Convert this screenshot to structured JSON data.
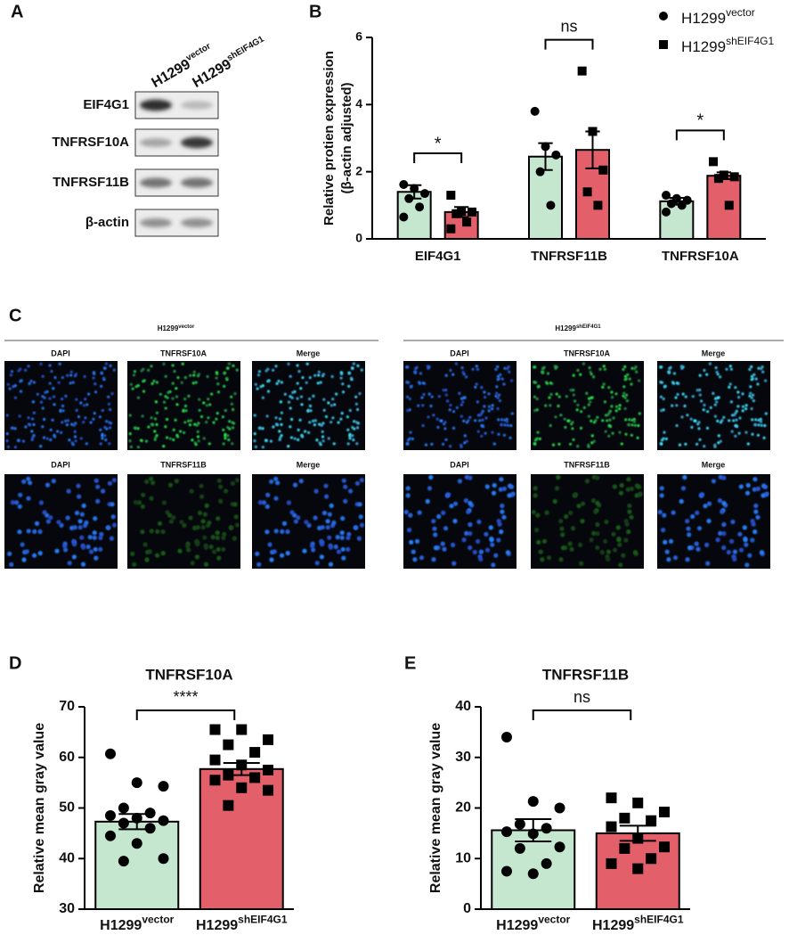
{
  "panel_labels": [
    "A",
    "B",
    "C",
    "D",
    "E"
  ],
  "blot": {
    "columns": [
      {
        "text": "H1299",
        "sup": "vector"
      },
      {
        "text": "H1299",
        "sup": "shEIF4G1"
      }
    ],
    "rows": [
      "EIF4G1",
      "TNFRSF10A",
      "TNFRSF11B",
      "β-actin"
    ]
  },
  "imaging": {
    "groups": [
      {
        "title": {
          "text": "H1299",
          "sup": "vector"
        },
        "rows": [
          [
            "DAPI",
            "TNFRSF10A",
            "Merge"
          ],
          [
            "DAPI",
            "TNFRSF11B",
            "Merge"
          ]
        ]
      },
      {
        "title": {
          "text": "H1299",
          "sup": "shEIF4G1"
        },
        "rows": [
          [
            "DAPI",
            "TNFRSF10A",
            "Merge"
          ],
          [
            "DAPI",
            "TNFRSF11B",
            "Merge"
          ]
        ]
      }
    ]
  },
  "chart_data": [
    {
      "type": "bar",
      "y_label": [
        "Relative protien expression",
        "(β-actin adjusted)"
      ],
      "categories": [
        "EIF4G1",
        "TNFRSF11B",
        "TNFRSF10A"
      ],
      "series": [
        {
          "name": "H1299",
          "superscript": "vector",
          "color": "#c5e6cf",
          "marker": "circle",
          "values": [
            1.4,
            2.45,
            1.12
          ],
          "errors": [
            0.2,
            0.4,
            0.1
          ],
          "points": [
            [
              1.62,
              1.5,
              1.35,
              1.2,
              0.95,
              0.65
            ],
            [
              3.8,
              2.75,
              2.5,
              2.0,
              1.0
            ],
            [
              1.3,
              1.2,
              1.15,
              1.05,
              1.0,
              0.8
            ]
          ]
        },
        {
          "name": "H1299",
          "superscript": "shEIF4G1",
          "color": "#e35f69",
          "marker": "square",
          "values": [
            0.8,
            2.65,
            1.88
          ],
          "errors": [
            0.15,
            0.55,
            0.1
          ],
          "points": [
            [
              1.3,
              0.82,
              0.8,
              0.75,
              0.5,
              0.3
            ],
            [
              5.0,
              3.2,
              2.05,
              1.4,
              1.0
            ],
            [
              2.3,
              1.9,
              1.85,
              1.8,
              1.0
            ]
          ]
        }
      ],
      "ylim": [
        0,
        6
      ],
      "yticks": [
        0,
        2,
        4,
        6
      ],
      "annotations": [
        "*",
        "ns",
        "*"
      ],
      "legend": "top-right"
    },
    {
      "type": "bar",
      "title": "TNFRSF10A",
      "y_label": "Relative mean gray value",
      "categories": [
        "H1299",
        "H1299"
      ],
      "category_superscripts": [
        "vector",
        "shEIF4G1"
      ],
      "colors": [
        "#c5e6cf",
        "#e35f69"
      ],
      "markers": [
        "circle",
        "square"
      ],
      "values": [
        47.3,
        57.7
      ],
      "errors": [
        1.5,
        1.2
      ],
      "points": [
        [
          60.7,
          55,
          54.3,
          50,
          49,
          48.5,
          48,
          47.5,
          47,
          46,
          44.5,
          43,
          40,
          39.5
        ],
        [
          65.5,
          65.5,
          63.5,
          62.5,
          61,
          59.5,
          58.5,
          57.5,
          56.5,
          56,
          55.5,
          54,
          53.5,
          50.5
        ]
      ],
      "ylim": [
        30,
        70
      ],
      "yticks": [
        30,
        40,
        50,
        60,
        70
      ],
      "annotation": "****"
    },
    {
      "type": "bar",
      "title": "TNFRSF11B",
      "y_label": "Relative mean gray value",
      "categories": [
        "H1299",
        "H1299"
      ],
      "category_superscripts": [
        "vector",
        "shEIF4G1"
      ],
      "colors": [
        "#c5e6cf",
        "#e35f69"
      ],
      "markers": [
        "circle",
        "square"
      ],
      "values": [
        15.6,
        15
      ],
      "errors": [
        2.2,
        1.5
      ],
      "points": [
        [
          34,
          21.3,
          20,
          16.8,
          16,
          15.3,
          14.9,
          12.3,
          12,
          9,
          7.5,
          7
        ],
        [
          22,
          21,
          19.2,
          18,
          17.5,
          16.3,
          14,
          12.3,
          12,
          10,
          9,
          8
        ]
      ],
      "ylim": [
        0,
        40
      ],
      "yticks": [
        0,
        10,
        20,
        30,
        40
      ],
      "annotation": "ns"
    }
  ]
}
